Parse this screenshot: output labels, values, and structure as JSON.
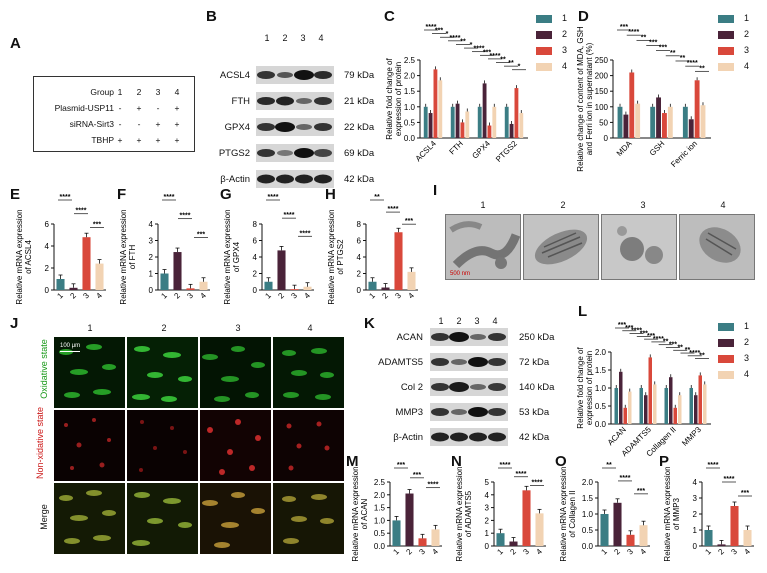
{
  "panel_letters": [
    "A",
    "B",
    "C",
    "D",
    "E",
    "F",
    "G",
    "H",
    "I",
    "J",
    "K",
    "L",
    "M",
    "N",
    "O",
    "P"
  ],
  "colors": {
    "g1": "#3b7d84",
    "g2": "#4a2339",
    "g3": "#d9483b",
    "g4": "#f2d3b3"
  },
  "table": {
    "header_label": "Group",
    "header_values": [
      "1",
      "2",
      "3",
      "4"
    ],
    "rows": [
      {
        "label": "Plasmid-USP11",
        "values": [
          "-",
          "+",
          "-",
          "+"
        ]
      },
      {
        "label": "siRNA-Sirt3",
        "values": [
          "-",
          "-",
          "+",
          "+"
        ]
      },
      {
        "label": "TBHP",
        "values": [
          "+",
          "+",
          "+",
          "+"
        ]
      }
    ]
  },
  "legend_labels": [
    "1",
    "2",
    "3",
    "4"
  ],
  "lanes": [
    "1",
    "2",
    "3",
    "4"
  ],
  "blot_b": {
    "rows": [
      {
        "label": "ACSL4",
        "kda": "79 kDa"
      },
      {
        "label": "FTH",
        "kda": "21 kDa"
      },
      {
        "label": "GPX4",
        "kda": "22 kDa"
      },
      {
        "label": "PTGS2",
        "kda": "69 kDa"
      },
      {
        "label": "β-Actin",
        "kda": "42 kDa"
      }
    ]
  },
  "blot_k": {
    "rows": [
      {
        "label": "ACAN",
        "kda": "250 kDa"
      },
      {
        "label": "ADAMTS5",
        "kda": "72 kDa"
      },
      {
        "label": "Col 2",
        "kda": "140 kDa"
      },
      {
        "label": "MMP3",
        "kda": "53 kDa"
      },
      {
        "label": "β-Actin",
        "kda": "42 kDa"
      }
    ]
  },
  "em": {
    "labels": [
      "1",
      "2",
      "3",
      "4"
    ],
    "scale": "500 nm"
  },
  "fluor": {
    "cols": [
      "1",
      "2",
      "3",
      "4"
    ],
    "rows": [
      "Oxidative state",
      "Non-xidative state",
      "Merge"
    ],
    "scale": "100 μm"
  },
  "chart_data": [
    {
      "panel": "C",
      "type": "bar",
      "ylabel": "Relative fold change of expression of protein",
      "categories": [
        "ACSL4",
        "FTH",
        "GPX4",
        "PTGS2"
      ],
      "yticks": [
        "0.0",
        "0.5",
        "1.0",
        "1.5",
        "2.0",
        "2.5"
      ],
      "ylim": [
        0,
        2.5
      ],
      "series": [
        {
          "name": "1",
          "values": [
            1.0,
            1.0,
            1.0,
            1.0
          ]
        },
        {
          "name": "2",
          "values": [
            0.8,
            1.1,
            1.75,
            0.45
          ]
        },
        {
          "name": "3",
          "values": [
            2.2,
            0.5,
            0.4,
            1.6
          ]
        },
        {
          "name": "4",
          "values": [
            1.85,
            0.85,
            1.0,
            0.8
          ]
        }
      ],
      "sig": [
        "****",
        "***",
        "*",
        "****",
        "**",
        "*",
        "****",
        "***",
        "****",
        "**",
        "**",
        "*"
      ]
    },
    {
      "panel": "D",
      "type": "bar",
      "ylabel": "Relative change of content of MDA, GSH and Ferri ion in supernatant (%)",
      "categories": [
        "MDA",
        "GSH",
        "Ferric ion"
      ],
      "yticks": [
        "0",
        "50",
        "100",
        "150",
        "200",
        "250"
      ],
      "ylim": [
        0,
        250
      ],
      "series": [
        {
          "name": "1",
          "values": [
            100,
            100,
            100
          ]
        },
        {
          "name": "2",
          "values": [
            75,
            130,
            60
          ]
        },
        {
          "name": "3",
          "values": [
            210,
            80,
            185
          ]
        },
        {
          "name": "4",
          "values": [
            110,
            100,
            105
          ]
        }
      ],
      "sig": [
        "***",
        "****",
        "**",
        "***",
        "***",
        "**",
        "**",
        "****",
        "**"
      ]
    },
    {
      "panel": "E",
      "type": "bar",
      "ylabel": "Relative mRNA expression of ACSL4",
      "categories": [
        "1",
        "2",
        "3",
        "4"
      ],
      "yticks": [
        "0",
        "2",
        "4",
        "6"
      ],
      "ylim": [
        0,
        6
      ],
      "values": [
        1.0,
        0.2,
        4.8,
        2.4
      ],
      "sig": [
        "****",
        "****",
        "***"
      ]
    },
    {
      "panel": "F",
      "type": "bar",
      "ylabel": "Relative mRNA expression of FTH",
      "categories": [
        "1",
        "2",
        "3",
        "4"
      ],
      "yticks": [
        "0",
        "1",
        "2",
        "3",
        "4"
      ],
      "ylim": [
        0,
        4
      ],
      "values": [
        1.0,
        2.3,
        0.1,
        0.5
      ],
      "sig": [
        "****",
        "****",
        "***"
      ]
    },
    {
      "panel": "G",
      "type": "bar",
      "ylabel": "Relative mRNA expression of GPX4",
      "categories": [
        "1",
        "2",
        "3",
        "4"
      ],
      "yticks": [
        "0",
        "2",
        "4",
        "6",
        "8"
      ],
      "ylim": [
        0,
        8
      ],
      "values": [
        1.0,
        4.8,
        0.1,
        0.4
      ],
      "sig": [
        "****",
        "****",
        "****"
      ]
    },
    {
      "panel": "H",
      "type": "bar",
      "ylabel": "Relative mRNA expression of PTGS2",
      "categories": [
        "1",
        "2",
        "3",
        "4"
      ],
      "yticks": [
        "0",
        "2",
        "4",
        "6",
        "8"
      ],
      "ylim": [
        0,
        8
      ],
      "values": [
        1.0,
        0.3,
        7.0,
        2.2
      ],
      "sig": [
        "**",
        "****",
        "***"
      ]
    },
    {
      "panel": "L",
      "type": "bar",
      "ylabel": "Relative fold change of expression of protein",
      "categories": [
        "ACAN",
        "ADAMTS5",
        "Collagen II",
        "MMP3"
      ],
      "yticks": [
        "0.0",
        "0.5",
        "1.0",
        "1.5",
        "2.0"
      ],
      "ylim": [
        0,
        2.0
      ],
      "series": [
        {
          "name": "1",
          "values": [
            1.0,
            1.0,
            1.0,
            1.0
          ]
        },
        {
          "name": "2",
          "values": [
            1.45,
            0.8,
            1.3,
            0.8
          ]
        },
        {
          "name": "3",
          "values": [
            0.45,
            1.85,
            0.45,
            1.35
          ]
        },
        {
          "name": "4",
          "values": [
            0.9,
            1.1,
            0.8,
            1.1
          ]
        }
      ],
      "sig": [
        "***",
        "***",
        "****",
        "***",
        "***",
        "****",
        "**",
        "***",
        "**",
        "**",
        "****",
        "**"
      ]
    },
    {
      "panel": "M",
      "type": "bar",
      "ylabel": "Relative mRNA expression of ACAN",
      "categories": [
        "1",
        "2",
        "3",
        "4"
      ],
      "yticks": [
        "0.0",
        "0.5",
        "1.0",
        "1.5",
        "2.0",
        "2.5"
      ],
      "ylim": [
        0,
        2.5
      ],
      "values": [
        1.0,
        2.05,
        0.3,
        0.65
      ],
      "sig": [
        "***",
        "***",
        "****"
      ]
    },
    {
      "panel": "N",
      "type": "bar",
      "ylabel": "Relative mRNA expression of ADAMTS5",
      "categories": [
        "1",
        "2",
        "3",
        "4"
      ],
      "yticks": [
        "0",
        "1",
        "2",
        "3",
        "4",
        "5"
      ],
      "ylim": [
        0,
        5
      ],
      "values": [
        1.0,
        0.35,
        4.35,
        2.55
      ],
      "sig": [
        "****",
        "****",
        "****"
      ]
    },
    {
      "panel": "O",
      "type": "bar",
      "ylabel": "Relative mRNA expression of Collagen II",
      "categories": [
        "1",
        "2",
        "3",
        "4"
      ],
      "yticks": [
        "0.0",
        "0.5",
        "1.0",
        "1.5",
        "2.0"
      ],
      "ylim": [
        0,
        2.0
      ],
      "values": [
        1.0,
        1.35,
        0.35,
        0.65
      ],
      "sig": [
        "**",
        "****",
        "***"
      ]
    },
    {
      "panel": "P",
      "type": "bar",
      "ylabel": "Relative mRNA expression of MMP3",
      "categories": [
        "1",
        "2",
        "3",
        "4"
      ],
      "yticks": [
        "0",
        "1",
        "2",
        "3",
        "4"
      ],
      "ylim": [
        0,
        4
      ],
      "values": [
        1.0,
        0.1,
        2.5,
        1.0
      ],
      "sig": [
        "****",
        "****",
        "***"
      ]
    }
  ]
}
